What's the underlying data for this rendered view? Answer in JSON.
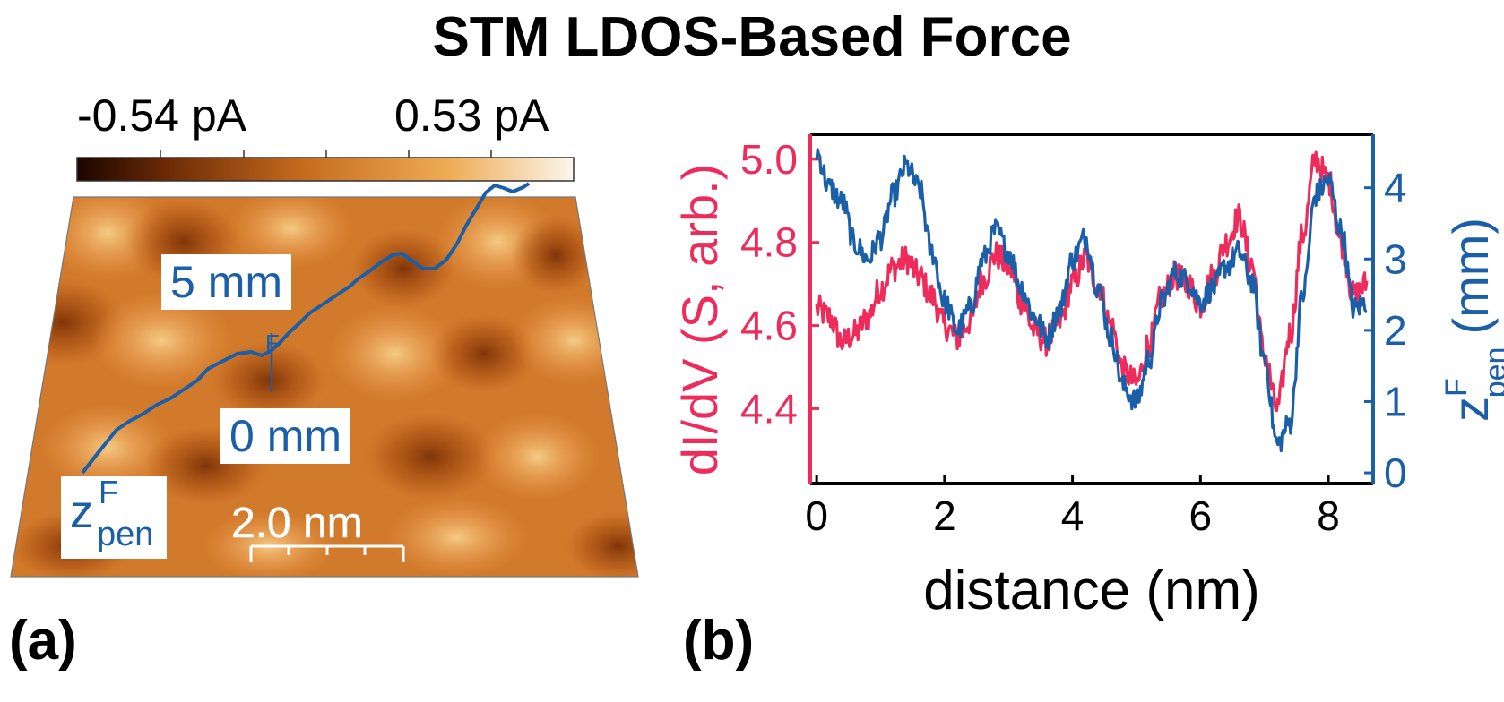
{
  "figure": {
    "title": "STM LDOS-Based Force",
    "panel_a_label": "(a)",
    "panel_b_label": "(b)"
  },
  "panel_a": {
    "colorbar_min_label": "-0.54 pA",
    "colorbar_max_label": "0.53 pA",
    "colorbar_min_value": -0.54,
    "colorbar_max_value": 0.53,
    "colorbar_unit": "pA",
    "trace_top_label": "5 mm",
    "trace_bottom_label": "0 mm",
    "trace_marker": "F",
    "zpen_symbol": "z",
    "zpen_sup": "F",
    "zpen_sub": "pen",
    "scalebar_label": "2.0 nm",
    "colors": {
      "dark": "#3a1200",
      "mid": "#c86a1e",
      "light": "#f7e3b8",
      "trace": "#1a5fa8"
    }
  },
  "chart_data": {
    "type": "line",
    "title": "",
    "xlabel": "distance (nm)",
    "ylabel_left": "dI/dV (S, arb.)",
    "ylabel_right_base": "z",
    "ylabel_right_sup": "F",
    "ylabel_right_sub": "pen",
    "ylabel_right_unit": "(mm)",
    "xlim": [
      -0.1,
      8.7
    ],
    "xticks": [
      0,
      2,
      4,
      6,
      8
    ],
    "ylim_left": [
      4.22,
      5.06
    ],
    "yticks_left": [
      4.4,
      4.6,
      4.8,
      5.0
    ],
    "ylim_right": [
      -0.15,
      4.75
    ],
    "yticks_right": [
      0,
      1,
      2,
      3,
      4
    ],
    "series": [
      {
        "name": "dI/dV",
        "axis": "left",
        "color": "#ee2c5c",
        "x": [
          0.0,
          0.2,
          0.4,
          0.6,
          0.8,
          1.0,
          1.2,
          1.4,
          1.6,
          1.8,
          2.0,
          2.2,
          2.4,
          2.6,
          2.8,
          3.0,
          3.2,
          3.4,
          3.6,
          3.8,
          4.0,
          4.2,
          4.4,
          4.6,
          4.8,
          5.0,
          5.2,
          5.4,
          5.6,
          5.8,
          6.0,
          6.2,
          6.4,
          6.6,
          6.8,
          7.0,
          7.2,
          7.4,
          7.6,
          7.8,
          8.0,
          8.2,
          8.4,
          8.6
        ],
        "values": [
          4.64,
          4.62,
          4.56,
          4.58,
          4.62,
          4.69,
          4.74,
          4.76,
          4.72,
          4.67,
          4.6,
          4.57,
          4.61,
          4.71,
          4.77,
          4.74,
          4.66,
          4.59,
          4.56,
          4.61,
          4.7,
          4.76,
          4.7,
          4.6,
          4.49,
          4.46,
          4.56,
          4.67,
          4.72,
          4.7,
          4.65,
          4.72,
          4.8,
          4.86,
          4.75,
          4.53,
          4.4,
          4.58,
          4.82,
          5.0,
          4.95,
          4.8,
          4.67,
          4.7
        ]
      },
      {
        "name": "z_pen^F",
        "axis": "right",
        "color": "#1a5fa8",
        "x": [
          0.0,
          0.2,
          0.4,
          0.6,
          0.8,
          1.0,
          1.2,
          1.4,
          1.6,
          1.8,
          2.0,
          2.2,
          2.4,
          2.6,
          2.8,
          3.0,
          3.2,
          3.4,
          3.6,
          3.8,
          4.0,
          4.2,
          4.4,
          4.6,
          4.8,
          5.0,
          5.2,
          5.4,
          5.6,
          5.8,
          6.0,
          6.2,
          6.4,
          6.6,
          6.8,
          7.0,
          7.2,
          7.4,
          7.6,
          7.8,
          8.0,
          8.2,
          8.4,
          8.6
        ],
        "values": [
          4.5,
          4.0,
          3.8,
          3.2,
          3.0,
          3.3,
          3.9,
          4.3,
          4.0,
          3.1,
          2.4,
          2.0,
          2.3,
          3.0,
          3.4,
          3.1,
          2.6,
          2.2,
          1.9,
          2.3,
          3.0,
          3.3,
          2.6,
          1.9,
          1.2,
          1.0,
          1.6,
          2.4,
          2.8,
          2.7,
          2.4,
          2.6,
          2.9,
          3.1,
          2.7,
          1.6,
          0.4,
          0.7,
          2.5,
          3.9,
          4.1,
          3.4,
          2.3,
          2.4
        ]
      }
    ]
  }
}
